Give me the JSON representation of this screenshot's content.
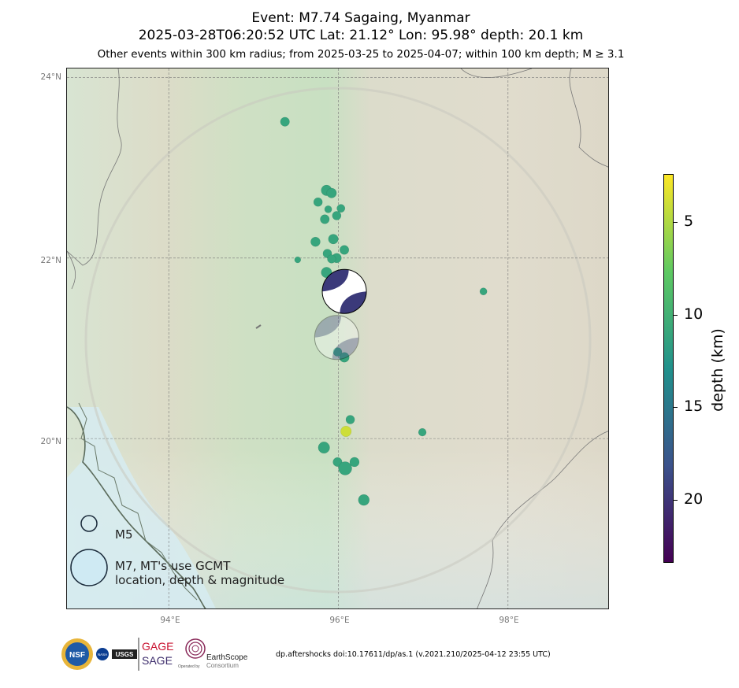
{
  "title": {
    "line1": "Event: M7.74 Sagaing, Myanmar",
    "line2": "2025-03-28T06:20:52 UTC Lat: 21.12° Lon: 95.98° depth: 20.1 km",
    "line3": "Other events within 300 km radius; from 2025-03-25 to 2025-04-07; within 100 km depth; M ≥ 3.1"
  },
  "map": {
    "lat_labels": [
      "24°N",
      "22°N",
      "20°N"
    ],
    "lon_labels": [
      "94°E",
      "96°E",
      "98°E"
    ],
    "lat_ticks": [
      24,
      22,
      20
    ],
    "lon_ticks": [
      94,
      96,
      98
    ],
    "lat_range": [
      18.1,
      24.1
    ],
    "lon_range": [
      92.8,
      99.2
    ]
  },
  "mainshock": {
    "lat": 21.12,
    "lon": 95.98,
    "depth_km": 20.1,
    "magnitude": 7.74
  },
  "events": [
    {
      "lon": 95.37,
      "lat": 23.51,
      "depth": 11,
      "mag": 4.6
    },
    {
      "lon": 95.86,
      "lat": 22.75,
      "depth": 11,
      "mag": 5.0
    },
    {
      "lon": 95.92,
      "lat": 22.72,
      "depth": 11,
      "mag": 4.8
    },
    {
      "lon": 95.76,
      "lat": 22.62,
      "depth": 11,
      "mag": 4.5
    },
    {
      "lon": 96.03,
      "lat": 22.55,
      "depth": 11,
      "mag": 4.3
    },
    {
      "lon": 95.88,
      "lat": 22.54,
      "depth": 11,
      "mag": 4.0
    },
    {
      "lon": 95.98,
      "lat": 22.47,
      "depth": 11,
      "mag": 4.5
    },
    {
      "lon": 95.84,
      "lat": 22.43,
      "depth": 11,
      "mag": 4.6
    },
    {
      "lon": 95.94,
      "lat": 22.21,
      "depth": 11,
      "mag": 4.8
    },
    {
      "lon": 95.73,
      "lat": 22.18,
      "depth": 11,
      "mag": 4.7
    },
    {
      "lon": 96.07,
      "lat": 22.09,
      "depth": 11,
      "mag": 4.6
    },
    {
      "lon": 95.87,
      "lat": 22.05,
      "depth": 11,
      "mag": 4.5
    },
    {
      "lon": 95.98,
      "lat": 22.0,
      "depth": 11,
      "mag": 4.7
    },
    {
      "lon": 95.92,
      "lat": 21.99,
      "depth": 11,
      "mag": 4.4
    },
    {
      "lon": 95.52,
      "lat": 21.98,
      "depth": 11,
      "mag": 3.6
    },
    {
      "lon": 95.86,
      "lat": 21.84,
      "depth": 11,
      "mag": 5.0
    },
    {
      "lon": 96.04,
      "lat": 21.78,
      "depth": 11,
      "mag": 4.4
    },
    {
      "lon": 97.71,
      "lat": 21.63,
      "depth": 11,
      "mag": 4.0
    },
    {
      "lon": 96.07,
      "lat": 20.9,
      "depth": 11,
      "mag": 4.8
    },
    {
      "lon": 95.99,
      "lat": 20.96,
      "depth": 11,
      "mag": 4.5
    },
    {
      "lon": 96.14,
      "lat": 20.21,
      "depth": 11,
      "mag": 4.5
    },
    {
      "lon": 96.99,
      "lat": 20.07,
      "depth": 11,
      "mag": 4.2
    },
    {
      "lon": 96.09,
      "lat": 20.08,
      "depth": 4,
      "mag": 5.0
    },
    {
      "lon": 95.83,
      "lat": 19.9,
      "depth": 11,
      "mag": 5.2
    },
    {
      "lon": 95.99,
      "lat": 19.74,
      "depth": 11,
      "mag": 4.6
    },
    {
      "lon": 96.19,
      "lat": 19.74,
      "depth": 11,
      "mag": 4.7
    },
    {
      "lon": 96.08,
      "lat": 19.67,
      "depth": 11,
      "mag": 5.6
    },
    {
      "lon": 96.3,
      "lat": 19.32,
      "depth": 11,
      "mag": 5.1
    }
  ],
  "beachballs": [
    {
      "lon": 96.07,
      "lat": 21.63,
      "mag": 7.7,
      "faded": false
    },
    {
      "lon": 95.98,
      "lat": 21.12,
      "mag": 7.7,
      "faded": true
    }
  ],
  "legend": {
    "m5_label": "M5",
    "m7_label_line1": "M7, MT's use GCMT",
    "m7_label_line2": "location, depth & magnitude"
  },
  "colorbar": {
    "title": "depth (km)",
    "ticks": [
      "5",
      "10",
      "15",
      "20"
    ],
    "tick_values": [
      5,
      10,
      15,
      20
    ],
    "range": [
      2.4,
      23.4
    ],
    "colors": [
      "#fde725",
      "#5ec962",
      "#21918c",
      "#3b528b",
      "#440154"
    ]
  },
  "logos": {
    "nsf": "NSF",
    "nasa": "NASA",
    "usgs": "USGS",
    "gage": "GAGE",
    "sage": "SAGE",
    "earthscope": "EarthScope",
    "operated_by": "Operated by",
    "consortium": "Consortium"
  },
  "footer": "dp.aftershocks doi:10.17611/dp/as.1 (v.2021.210/2025-04-12 23:55 UTC)"
}
